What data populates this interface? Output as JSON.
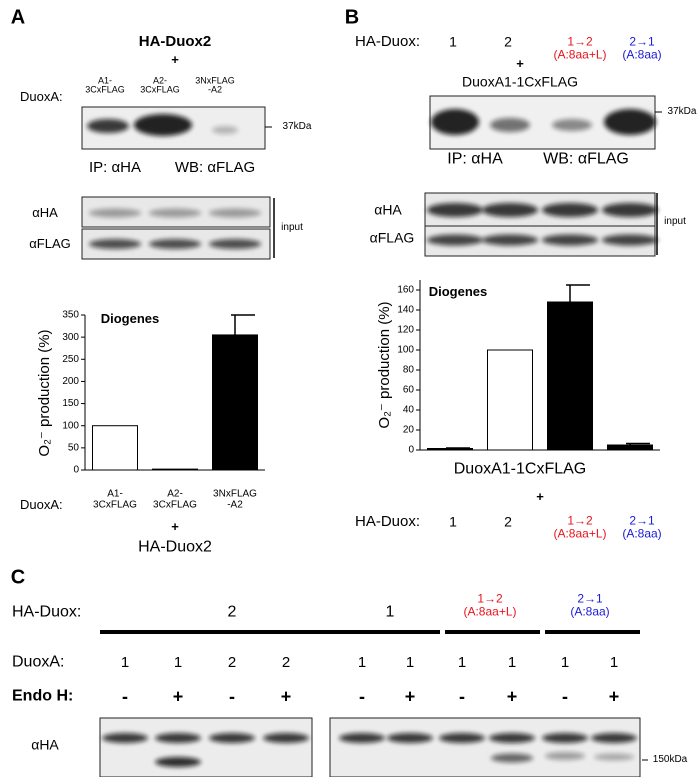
{
  "panels": {
    "A": {
      "label": "A",
      "construct": "HA-Duox2",
      "plus": "+",
      "duoxa_label": "DuoxA:",
      "lanes": [
        "A1-\n3CxFLAG",
        "A2-\n3CxFLAG",
        "3NxFLAG\n-A2"
      ],
      "marker": "37kDa",
      "ip": "IP: αHA",
      "wb": "WB: αFLAG",
      "rows": [
        "αHA",
        "αFLAG"
      ],
      "input": "input"
    },
    "B": {
      "label": "B",
      "haduox_label": "HA-Duox:",
      "lanes": [
        "1",
        "2",
        "1→2\n(A:8aa+L)",
        "2→1\n(A:8aa)"
      ],
      "lane_colors": [
        "#000000",
        "#000000",
        "#e8141c",
        "#1a1ad8"
      ],
      "plus": "+",
      "construct": "DuoxA1-1CxFLAG",
      "marker": "37kDa",
      "ip": "IP: αHA",
      "wb": "WB: αFLAG",
      "rows": [
        "αHA",
        "αFLAG"
      ],
      "input": "input"
    },
    "C": {
      "label": "C",
      "haduox_label": "HA-Duox:",
      "groups": [
        "2",
        "1",
        "1→2\n(A:8aa+L)",
        "2→1\n(A:8aa)"
      ],
      "group_colors": [
        "#000000",
        "#000000",
        "#e8141c",
        "#1a1ad8"
      ],
      "duoxa_label": "DuoxA:",
      "duoxa": [
        "1",
        "1",
        "2",
        "2",
        "1",
        "1",
        "1",
        "1",
        "1",
        "1"
      ],
      "endoh_label": "Endo H:",
      "endoh": [
        "-",
        "+",
        "-",
        "+",
        "-",
        "+",
        "-",
        "+",
        "-",
        "+"
      ],
      "row": "αHA",
      "marker": "150kDa"
    }
  },
  "chart_data": [
    {
      "type": "bar",
      "annotation": "Diogenes",
      "y_label": "O₂⁻ production (%)",
      "x_label": "DuoxA:",
      "below_plus": "+",
      "below_text": "HA-Duox2",
      "categories": [
        "A1-\n3CxFLAG",
        "A2-\n3CxFLAG",
        "3NxFLAG\n-A2"
      ],
      "values": [
        100,
        2,
        305
      ],
      "errors": [
        0,
        0,
        45
      ],
      "colors": [
        "#ffffff",
        "#ffffff",
        "#000000"
      ],
      "ylim": [
        0,
        350
      ],
      "yticks": [
        0,
        50,
        100,
        150,
        200,
        250,
        300,
        350
      ]
    },
    {
      "type": "bar",
      "annotation": "Diogenes",
      "y_label": "O₂⁻ production (%)",
      "x_label": "HA-Duox:",
      "above_text": "DuoxA1-1CxFLAG",
      "above_plus": "+",
      "categories": [
        "1",
        "2",
        "1→2\n(A:8aa+L)",
        "2→1\n(A:8aa)"
      ],
      "category_colors": [
        "#000000",
        "#000000",
        "#e8141c",
        "#1a1ad8"
      ],
      "values": [
        1.5,
        100,
        148,
        5
      ],
      "errors": [
        0.5,
        0,
        17,
        1.5
      ],
      "colors": [
        "#000000",
        "#ffffff",
        "#000000",
        "#000000"
      ],
      "ylim": [
        0,
        170
      ],
      "yticks": [
        0,
        20,
        40,
        60,
        80,
        100,
        120,
        140,
        160
      ]
    }
  ]
}
